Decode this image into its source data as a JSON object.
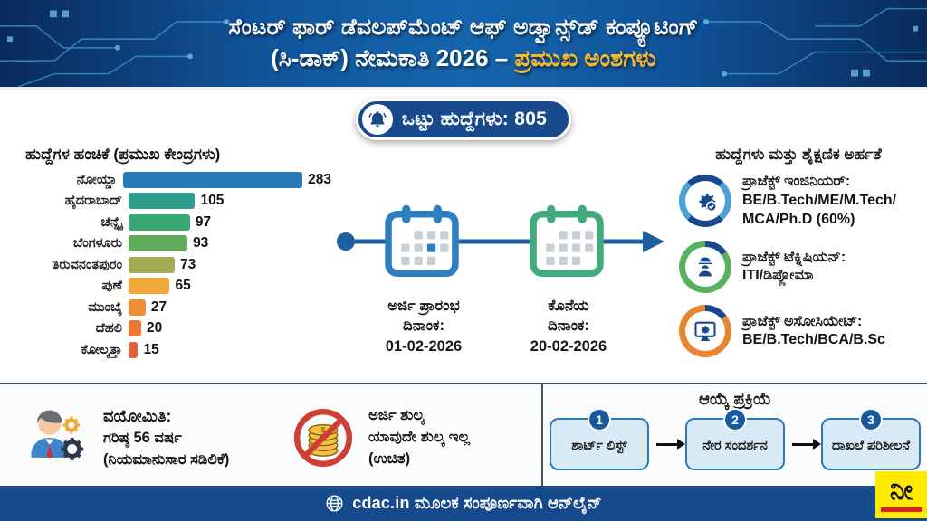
{
  "header": {
    "line1": "ಸೆಂಟರ್ ಫಾರ್ ಡೆವಲಪ್‌ಮೆಂಟ್ ಆಫ್ ಅಡ್ವಾನ್ಸ್‌ಡ್ ಕಂಪ್ಯೂಟಿಂಗ್",
    "line2_prefix": "(ಸಿ-ಡಾಕ್) ನೇಮಕಾತಿ 2026 – ",
    "line2_highlight": "ಪ್ರಮುಖ ಅಂಶಗಳು"
  },
  "pill": {
    "icon": "bell-icon",
    "label": "ಒಟ್ಟು ಹುದ್ದೆಗಳು: 805"
  },
  "chart_data": {
    "type": "bar",
    "orientation": "horizontal",
    "title": "ಹುದ್ದೆಗಳ ಹಂಚಿಕೆ (ಪ್ರಮುಖ ಕೇಂದ್ರಗಳು)",
    "categories": [
      "ನೋಯ್ಡಾ",
      "ಹೈದರಾಬಾದ್",
      "ಚೆನ್ನೈ",
      "ಬೆಂಗಳೂರು",
      "ತಿರುವನಂತಪುರಂ",
      "ಪುಣೆ",
      "ಮುಂಬೈ",
      "ದೆಹಲಿ",
      "ಕೋಲ್ಕತ್ತಾ"
    ],
    "values": [
      283,
      105,
      97,
      93,
      73,
      65,
      27,
      20,
      15
    ],
    "colors": [
      "#2779b8",
      "#2f9d8e",
      "#3aa873",
      "#62ab5c",
      "#a4ab52",
      "#f2a93c",
      "#ef8c36",
      "#ea7733",
      "#e2603c"
    ],
    "xlabel": "",
    "ylabel": "",
    "xlim": [
      0,
      300
    ],
    "grid": false,
    "legend": false,
    "value_labels_shown": true,
    "total": 805
  },
  "timeline": {
    "start": {
      "icon": "calendar-blue-icon",
      "line1": "ಅರ್ಜಿ ಪ್ರಾರಂಭ",
      "line2": "ದಿನಾಂಕ:",
      "line3": "01-02-2026"
    },
    "end": {
      "icon": "calendar-green-icon",
      "line1": "ಕೊನೆಯ",
      "line2": "ದಿನಾಂಕ:",
      "line3": "20-02-2026"
    }
  },
  "qualifications": {
    "title": "ಹುದ್ದೆಗಳು ಮತ್ತು ಶೈಕ್ಷಣಿಕ ಅರ್ಹತೆ",
    "items": [
      {
        "icon": "gear-check-icon",
        "ring_color": "#4aa0d6",
        "label": "ಪ್ರಾಜೆಕ್ಟ್ ಇಂಜಿನಿಯರ್:",
        "value": "BE/B.Tech/ME/M.Tech/ MCA/Ph.D (60%)"
      },
      {
        "icon": "worker-icon",
        "ring_color": "#58b15f",
        "label": "ಪ್ರಾಜೆಕ್ಟ್ ಟೆಕ್ನಿಷಿಯನ್:",
        "value": "ITI/ಡಿಪ್ಲೋಮಾ"
      },
      {
        "icon": "monitor-gear-icon",
        "ring_color": "#e8862f",
        "label": "ಪ್ರಾಜೆಕ್ಟ್ ಅಸೋಸಿಯೇಟ್:",
        "value": "BE/B.Tech/BCA/B.Sc"
      }
    ]
  },
  "age": {
    "icon": "person-gears-icon",
    "title": "ವಯೋಮಿತಿ:",
    "limit": "ಗರಿಷ್ಠ 56 ವರ್ಷ",
    "note": "(ನಿಯಮಾನುಸಾರ ಸಡಿಲಿಕೆ)"
  },
  "fee": {
    "icon": "no-fee-coins-icon",
    "line1": "ಅರ್ಜಿ ಶುಲ್ಕ",
    "line2": "ಯಾವುದೇ ಶುಲ್ಕ ಇಲ್ಲ",
    "line3": "(ಉಚಿತ)"
  },
  "selection": {
    "title": "ಆಯ್ಕೆ ಪ್ರಕ್ರಿಯೆ",
    "steps": [
      {
        "num": "1",
        "label": "ಶಾರ್ಟ್ ಲಿಸ್ಟ್"
      },
      {
        "num": "2",
        "label": "ನೇರ ಸಂದರ್ಶನ"
      },
      {
        "num": "3",
        "label": "ದಾಖಲೆ ಪರಿಶೀಲನೆ"
      }
    ]
  },
  "footer": {
    "icon": "globe-icon",
    "text": "cdac.in ಮೂಲಕ ಸಂಪೂರ್ಣವಾಗಿ ಆನ್‌ಲೈನ್"
  },
  "logo": {
    "text": "ನೀ"
  },
  "colors": {
    "header_bg": "#1565ac",
    "header_dark": "#092a5c",
    "highlight_yellow": "#f7b731",
    "navy": "#17498c",
    "timeline_blue": "#1d5fa0",
    "calendar_blue": "#2e7fc2",
    "calendar_green": "#41ab7c",
    "step_fill": "#d9eaf7",
    "step_border": "#2f76b5",
    "footer_bg": "#174a8c",
    "logo_yellow": "#ffe900",
    "logo_red": "#d61f26"
  }
}
